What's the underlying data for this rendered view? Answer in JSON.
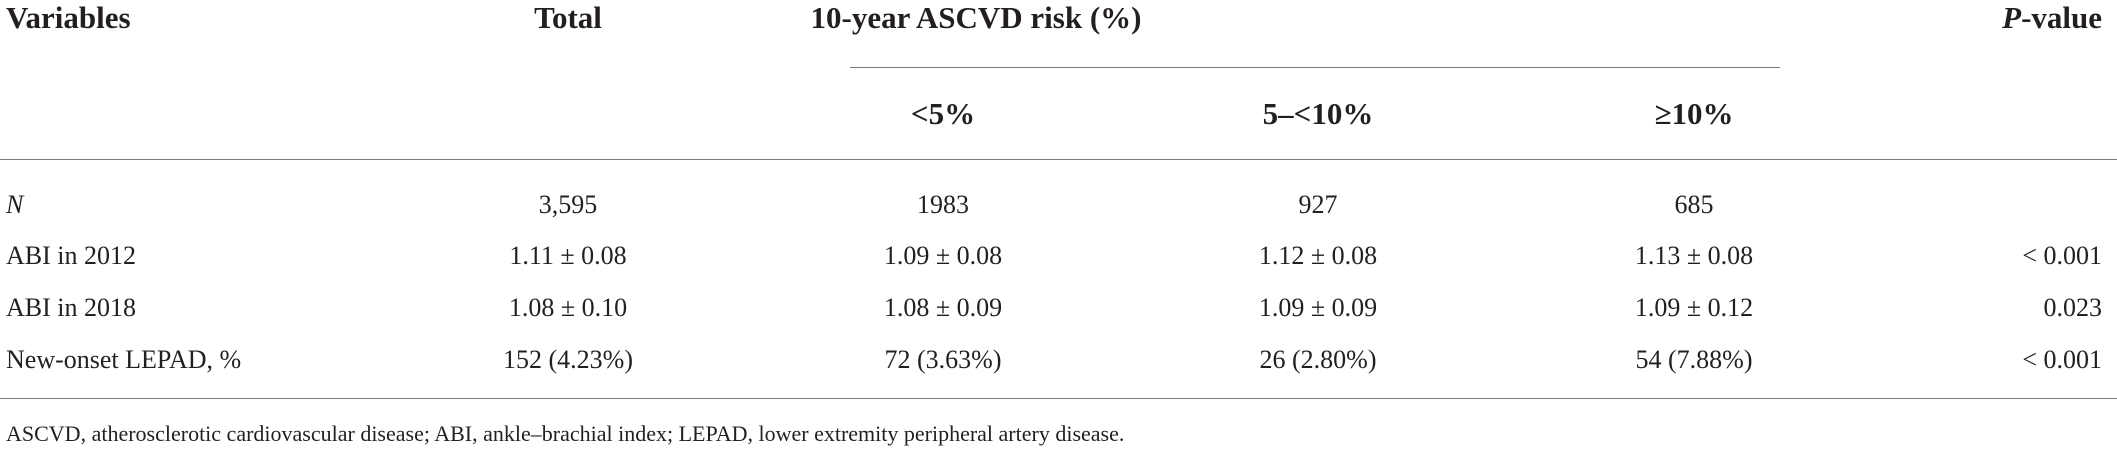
{
  "table": {
    "headers": {
      "variables": "Variables",
      "total": "Total",
      "group": "10-year ASCVD risk (%)",
      "sub": [
        "<5%",
        "5–<10%",
        "≥10%"
      ],
      "pvalue_italic": "P",
      "pvalue_rest": "-value"
    },
    "rows": [
      {
        "label": "N",
        "total": "3,595",
        "g1": "1983",
        "g2": "927",
        "g3": "685",
        "p": ""
      },
      {
        "label": "ABI in 2012",
        "total": "1.11 ± 0.08",
        "g1": "1.09 ± 0.08",
        "g2": "1.12 ± 0.08",
        "g3": "1.13 ± 0.08",
        "p": "< 0.001"
      },
      {
        "label": "ABI in 2018",
        "total": "1.08 ± 0.10",
        "g1": "1.08 ± 0.09",
        "g2": "1.09 ± 0.09",
        "g3": "1.09 ± 0.12",
        "p": "0.023"
      },
      {
        "label": "New-onset LEPAD, %",
        "total": "152 (4.23%)",
        "g1": "72 (3.63%)",
        "g2": "26 (2.80%)",
        "g3": "54 (7.88%)",
        "p": "< 0.001"
      }
    ],
    "footnote": "ASCVD, atherosclerotic cardiovascular disease; ABI, ankle–brachial index; LEPAD, lower extremity peripheral artery disease."
  }
}
